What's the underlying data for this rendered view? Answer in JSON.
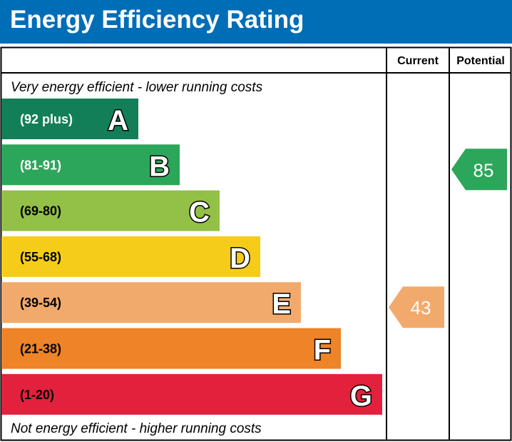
{
  "chart_data": {
    "type": "bar",
    "title": "Energy Efficiency Rating",
    "column_headers": [
      "Current",
      "Potential"
    ],
    "top_label": "Very energy efficient - lower running costs",
    "bottom_label": "Not energy efficient - higher running costs",
    "bands": [
      {
        "letter": "A",
        "range": "(92 plus)",
        "color": "#127f58"
      },
      {
        "letter": "B",
        "range": "(81-91)",
        "color": "#2ca65a"
      },
      {
        "letter": "C",
        "range": "(69-80)",
        "color": "#93c047"
      },
      {
        "letter": "D",
        "range": "(55-68)",
        "color": "#f6cc1a"
      },
      {
        "letter": "E",
        "range": "(39-54)",
        "color": "#f2aa6c"
      },
      {
        "letter": "F",
        "range": "(21-38)",
        "color": "#ee8328"
      },
      {
        "letter": "G",
        "range": "(1-20)",
        "color": "#e2213c"
      }
    ],
    "current": {
      "value": 43,
      "band": "E",
      "color": "#f2aa6c"
    },
    "potential": {
      "value": 85,
      "band": "B",
      "color": "#2ca65a"
    }
  }
}
